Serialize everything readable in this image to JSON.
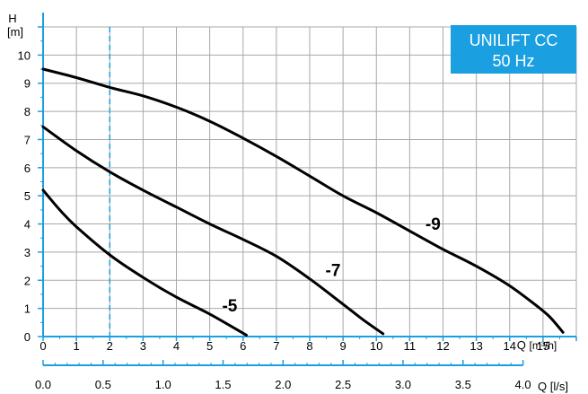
{
  "colors": {
    "axis": "#1a9fe0",
    "grid": "#a8a8a8",
    "curve": "#000000",
    "badge_bg": "#1a9fe0",
    "badge_text": "#ffffff",
    "marker": "#1a9fe0"
  },
  "chart_data": {
    "type": "line",
    "title": "",
    "badge": {
      "line1": "UNILIFT CC",
      "line2": "50 Hz"
    },
    "y_axis": {
      "label_top": "H",
      "unit": "[m]",
      "ylim": [
        0,
        11
      ],
      "ticks": [
        0,
        1,
        2,
        3,
        4,
        5,
        6,
        7,
        8,
        9,
        10
      ]
    },
    "x_axis": {
      "label": "Q [m³/h]",
      "label_prefix": "Q",
      "unit": "[m³/h]",
      "xlim": [
        0,
        16
      ],
      "ticks": [
        0,
        1,
        2,
        3,
        4,
        5,
        6,
        7,
        8,
        9,
        10,
        11,
        12,
        13,
        14,
        15
      ]
    },
    "x_axis_secondary": {
      "label": "Q [l/s]",
      "label_prefix": "Q",
      "unit": "[l/s]",
      "ticks": [
        "0.0",
        "0.5",
        "1.0",
        "1.5",
        "2.0",
        "2.5",
        "3.0",
        "3.5",
        "4.0"
      ],
      "tick_values": [
        0,
        0.5,
        1.0,
        1.5,
        2.0,
        2.5,
        3.0,
        3.5,
        4.0
      ]
    },
    "grid": true,
    "marker_line": {
      "x": 2,
      "style": "dashed"
    },
    "series": [
      {
        "name": "-5",
        "x": [
          0,
          0.5,
          1,
          2,
          3,
          4,
          5,
          6.1
        ],
        "y": [
          5.2,
          4.5,
          3.9,
          2.9,
          2.1,
          1.4,
          0.8,
          0.05
        ]
      },
      {
        "name": "-7",
        "x": [
          0,
          1,
          2,
          3,
          4,
          5,
          6,
          7,
          8,
          9,
          9.6,
          10.2
        ],
        "y": [
          7.45,
          6.6,
          5.85,
          5.2,
          4.6,
          4.0,
          3.45,
          2.85,
          2.05,
          1.15,
          0.6,
          0.1
        ]
      },
      {
        "name": "-9",
        "x": [
          0,
          1,
          2,
          3,
          4,
          5,
          6,
          7,
          8,
          9,
          10,
          11,
          12,
          13,
          14,
          14.8,
          15.2,
          15.6
        ],
        "y": [
          9.5,
          9.2,
          8.85,
          8.55,
          8.15,
          7.65,
          7.05,
          6.4,
          5.7,
          5.0,
          4.4,
          3.75,
          3.1,
          2.5,
          1.8,
          1.1,
          0.7,
          0.15
        ]
      }
    ]
  }
}
